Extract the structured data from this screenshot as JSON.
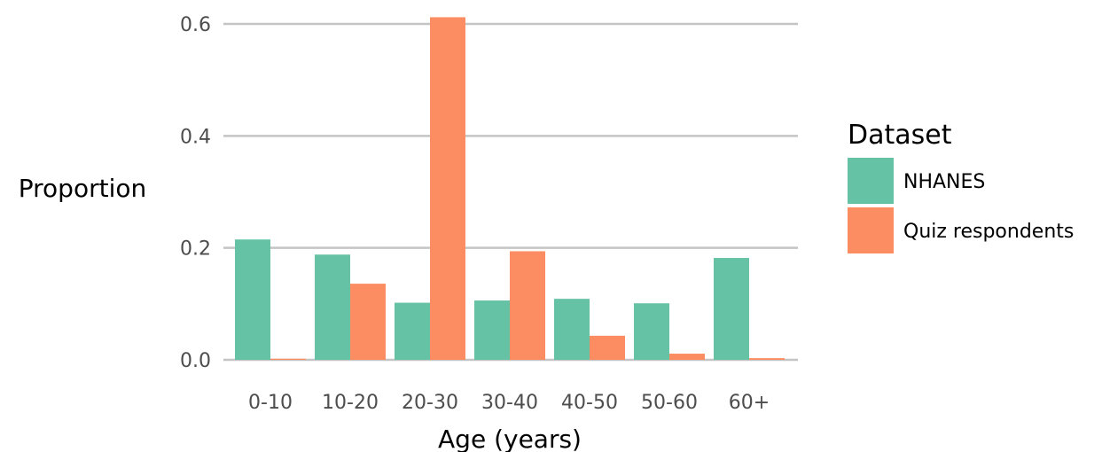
{
  "chart_data": {
    "type": "bar",
    "categories": [
      "0-10",
      "10-20",
      "20-30",
      "30-40",
      "40-50",
      "50-60",
      "60+"
    ],
    "series": [
      {
        "name": "NHANES",
        "values": [
          0.215,
          0.188,
          0.102,
          0.106,
          0.109,
          0.101,
          0.182
        ],
        "color": "#66c2a5"
      },
      {
        "name": "Quiz respondents",
        "values": [
          0.002,
          0.136,
          0.612,
          0.194,
          0.043,
          0.011,
          0.003
        ],
        "color": "#fc8d62"
      }
    ],
    "xlabel": "Age (years)",
    "ylabel": "Proportion",
    "ylim": [
      0,
      0.62
    ],
    "yticks": [
      0.0,
      0.2,
      0.4,
      0.6
    ],
    "ytick_labels": [
      "0.0",
      "0.2",
      "0.4",
      "0.6"
    ],
    "grid": true,
    "legend": {
      "title": "Dataset",
      "position": "right"
    }
  }
}
